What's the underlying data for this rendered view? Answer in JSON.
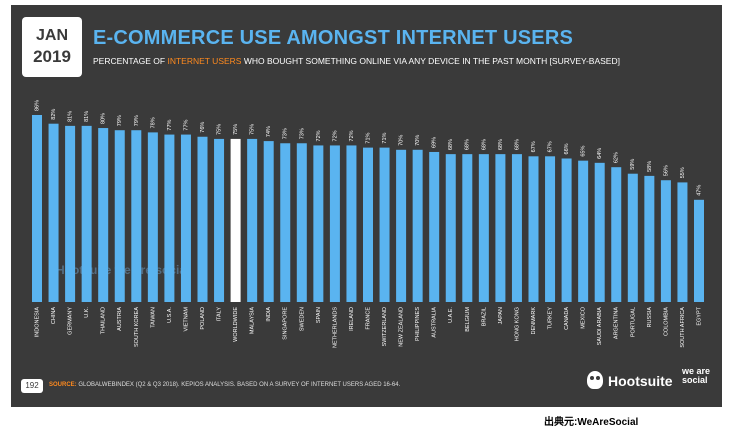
{
  "header": {
    "month": "JAN",
    "year": "2019",
    "title": "E-COMMERCE USE AMONGST INTERNET USERS",
    "subtitle_pre": "PERCENTAGE OF ",
    "subtitle_highlight": "INTERNET USERS",
    "subtitle_post": " WHO BOUGHT SOMETHING ONLINE VIA ANY DEVICE IN THE PAST MONTH [SURVEY-BASED]"
  },
  "colors": {
    "bar": "#5ab4f0",
    "highlight_bar": "#ffffff",
    "background": "#3a3a3a",
    "accent": "#ff8a1e"
  },
  "chart_data": {
    "type": "bar",
    "categories": [
      "INDONESIA",
      "CHINA",
      "GERMANY",
      "U.K.",
      "THAILAND",
      "AUSTRIA",
      "SOUTH KOREA",
      "TAIWAN",
      "U.S.A.",
      "VIETNAM",
      "POLAND",
      "ITALY",
      "WORLDWIDE",
      "MALAYSIA",
      "INDIA",
      "SINGAPORE",
      "SWEDEN",
      "SPAIN",
      "NETHERLANDS",
      "IRELAND",
      "FRANCE",
      "SWITZERLAND",
      "NEW ZEALAND",
      "PHILIPPINES",
      "AUSTRALIA",
      "U.A.E.",
      "BELGIUM",
      "BRAZIL",
      "JAPAN",
      "HONG KONG",
      "DENMARK",
      "TURKEY",
      "CANADA",
      "MEXICO",
      "SAUDI ARABIA",
      "ARGENTINA",
      "PORTUGAL",
      "RUSSIA",
      "COLOMBIA",
      "SOUTH AFRICA",
      "EGYPT"
    ],
    "values": [
      86,
      82,
      81,
      81,
      80,
      79,
      79,
      78,
      77,
      77,
      76,
      75,
      75,
      75,
      74,
      73,
      73,
      72,
      72,
      72,
      71,
      71,
      70,
      70,
      69,
      68,
      68,
      68,
      68,
      68,
      67,
      67,
      66,
      65,
      64,
      62,
      59,
      58,
      56,
      55,
      47
    ],
    "labels": [
      "86%",
      "82%",
      "81%",
      "81%",
      "80%",
      "79%",
      "79%",
      "78%",
      "77%",
      "77%",
      "76%",
      "75%",
      "75%",
      "75%",
      "74%",
      "73%",
      "73%",
      "72%",
      "72%",
      "72%",
      "71%",
      "71%",
      "70%",
      "70%",
      "69%",
      "68%",
      "68%",
      "68%",
      "68%",
      "68%",
      "67%",
      "67%",
      "66%",
      "65%",
      "64%",
      "62%",
      "59%",
      "58%",
      "56%",
      "55%",
      "47%"
    ],
    "highlight": "WORLDWIDE",
    "ylim": [
      0,
      86
    ]
  },
  "footer": {
    "page_number": "192",
    "source_label": "SOURCE:",
    "source_text": " GLOBALWEBINDEX (Q2 & Q3 2018). KEPIOS ANALYSIS. BASED ON A SURVEY OF INTERNET USERS AGED 16-64.",
    "brand": "Hootsuite",
    "brand_tagline": "we are social",
    "watermark": "Hootsuite  we are social"
  },
  "credit": "出典元:WeAreSocial"
}
